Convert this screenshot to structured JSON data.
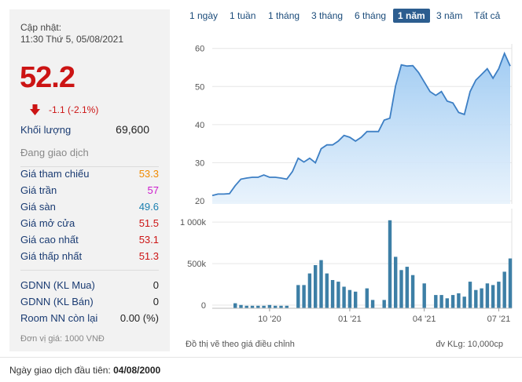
{
  "header": {
    "update_label": "Cập nhật:",
    "update_time": "11:30 Thứ 5, 05/08/2021",
    "price": "52.2",
    "change": "-1.1 (-2.1%)",
    "volume_label": "Khối lượng",
    "volume_value": "69,600",
    "status": "Đang giao dịch"
  },
  "price_rows": [
    {
      "label": "Giá tham chiếu",
      "value": "53.3",
      "color": "#f08a00"
    },
    {
      "label": "Giá trần",
      "value": "57",
      "color": "#cc19cc"
    },
    {
      "label": "Giá sàn",
      "value": "49.6",
      "color": "#1a7fb0"
    },
    {
      "label": "Giá mở cửa",
      "value": "51.5",
      "color": "#cc1414"
    },
    {
      "label": "Giá cao nhất",
      "value": "53.1",
      "color": "#cc1414"
    },
    {
      "label": "Giá thấp nhất",
      "value": "51.3",
      "color": "#cc1414"
    }
  ],
  "foreign_rows": [
    {
      "label": "GDNN (KL Mua)",
      "value": "0"
    },
    {
      "label": "GDNN (KL Bán)",
      "value": "0"
    },
    {
      "label": "Room NN còn lại",
      "value": "0.00 (%)"
    }
  ],
  "unit_note": "Đơn vị giá: 1000 VNĐ",
  "tabs": [
    "1 ngày",
    "1 tuần",
    "1 tháng",
    "3 tháng",
    "6 tháng",
    "1 năm",
    "3 năm",
    "Tất cả"
  ],
  "active_tab": "1 năm",
  "footer": {
    "adjusted_note": "Đồ thị vẽ theo giá điều chỉnh",
    "volume_unit": "đv KLg: 10,000cp",
    "first_day_label": "Ngày giao dịch đầu tiên:",
    "first_day_value": "04/08/2000"
  },
  "colors": {
    "price_down": "#cc1414",
    "tab_active": "#2c5d8f",
    "line": "#3d7fc4",
    "bar": "#3d7fa6"
  },
  "chart_data": [
    {
      "type": "area",
      "ylim": [
        20,
        62
      ],
      "yticks": [
        20,
        30,
        40,
        50,
        60
      ],
      "values": [
        22.2,
        22.6,
        22.6,
        22.7,
        24.8,
        26.5,
        26.8,
        27.0,
        27.0,
        27.6,
        27.0,
        27.0,
        26.8,
        26.5,
        28.5,
        32.0,
        31.0,
        32.0,
        30.8,
        34.5,
        35.5,
        35.5,
        36.5,
        38.0,
        37.5,
        36.5,
        37.5,
        39.0,
        39.0,
        39.0,
        42.0,
        42.5,
        51.0,
        56.5,
        56.2,
        56.3,
        54.5,
        52.0,
        49.5,
        48.5,
        49.5,
        47.0,
        46.5,
        44.0,
        43.5,
        49.5,
        52.5,
        54.0,
        55.5,
        53.0,
        55.5,
        59.5,
        56.2
      ]
    },
    {
      "type": "bar",
      "yticks": [
        "1 000k",
        "500k",
        "0"
      ],
      "ylim": [
        0,
        1200
      ],
      "values": [
        0,
        0,
        0,
        0,
        60,
        40,
        30,
        30,
        30,
        30,
        40,
        30,
        30,
        30,
        0,
        280,
        280,
        420,
        520,
        580,
        420,
        340,
        320,
        260,
        220,
        200,
        0,
        240,
        100,
        0,
        100,
        1060,
        620,
        460,
        500,
        400,
        0,
        300,
        0,
        160,
        160,
        120,
        160,
        180,
        140,
        320,
        220,
        240,
        300,
        280,
        320,
        440,
        600
      ],
      "xticks": [
        {
          "label": "10 '20",
          "index": 10
        },
        {
          "label": "01 '21",
          "index": 24
        },
        {
          "label": "04 '21",
          "index": 37
        },
        {
          "label": "07 '21",
          "index": 50
        }
      ]
    }
  ]
}
